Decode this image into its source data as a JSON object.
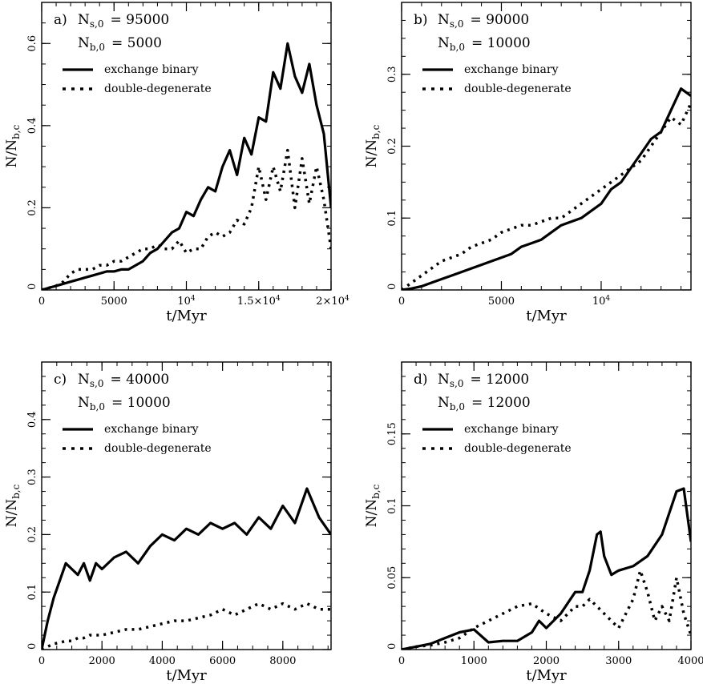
{
  "chart_data": [
    {
      "type": "line",
      "panel_label": "a)",
      "ns_label": "N",
      "ns_sub": "s,0",
      "ns_value": "= 95000",
      "nb_label": "N",
      "nb_sub": "b,0",
      "nb_value": "=  5000",
      "xlabel": "t/Myr",
      "ylabel": "N/N",
      "ylabel_sub": "b,c",
      "xlim": [
        0,
        20000
      ],
      "ylim": [
        0,
        0.7
      ],
      "xticks": [
        {
          "v": 0,
          "label": "0"
        },
        {
          "v": 5000,
          "label": "5000"
        },
        {
          "v": 10000,
          "base": "10",
          "exp": "4"
        },
        {
          "v": 15000,
          "base": "1.5×10",
          "exp": "4"
        },
        {
          "v": 20000,
          "base": "2×10",
          "exp": "4"
        }
      ],
      "xminor": 1000,
      "yticks": [
        {
          "v": 0,
          "label": "0"
        },
        {
          "v": 0.2,
          "label": "0.2"
        },
        {
          "v": 0.4,
          "label": "0.4"
        },
        {
          "v": 0.6,
          "label": "0.6"
        }
      ],
      "yminor": 0.05,
      "series": [
        {
          "name": "exchange binary",
          "style": "solid",
          "x": [
            0,
            500,
            1000,
            1500,
            2000,
            2500,
            3000,
            3500,
            4000,
            4500,
            5000,
            5500,
            6000,
            6500,
            7000,
            7500,
            8000,
            8500,
            9000,
            9500,
            10000,
            10500,
            11000,
            11500,
            12000,
            12500,
            13000,
            13500,
            14000,
            14500,
            15000,
            15500,
            16000,
            16500,
            17000,
            17500,
            18000,
            18500,
            19000,
            19500,
            20000
          ],
          "y": [
            0,
            0.005,
            0.01,
            0.015,
            0.02,
            0.025,
            0.03,
            0.035,
            0.04,
            0.045,
            0.045,
            0.05,
            0.05,
            0.06,
            0.07,
            0.09,
            0.1,
            0.12,
            0.14,
            0.15,
            0.19,
            0.18,
            0.22,
            0.25,
            0.24,
            0.3,
            0.34,
            0.28,
            0.37,
            0.33,
            0.42,
            0.41,
            0.53,
            0.49,
            0.6,
            0.52,
            0.48,
            0.55,
            0.45,
            0.38,
            0.2
          ]
        },
        {
          "name": "double-degenerate",
          "style": "dotted",
          "x": [
            0,
            500,
            1000,
            1500,
            2000,
            2500,
            3000,
            3500,
            4000,
            4500,
            5000,
            5500,
            6000,
            6500,
            7000,
            7500,
            8000,
            8500,
            9000,
            9500,
            10000,
            10500,
            11000,
            11500,
            12000,
            12500,
            13000,
            13500,
            14000,
            14500,
            15000,
            15500,
            16000,
            16500,
            17000,
            17500,
            18000,
            18500,
            19000,
            19500,
            20000
          ],
          "y": [
            0,
            0.005,
            0.01,
            0.02,
            0.04,
            0.05,
            0.05,
            0.05,
            0.06,
            0.06,
            0.07,
            0.07,
            0.08,
            0.09,
            0.1,
            0.1,
            0.11,
            0.1,
            0.1,
            0.12,
            0.09,
            0.1,
            0.1,
            0.13,
            0.14,
            0.13,
            0.14,
            0.17,
            0.16,
            0.2,
            0.3,
            0.22,
            0.3,
            0.24,
            0.34,
            0.2,
            0.32,
            0.21,
            0.3,
            0.22,
            0.1
          ]
        }
      ]
    },
    {
      "type": "line",
      "panel_label": "b)",
      "ns_label": "N",
      "ns_sub": "s,0",
      "ns_value": "= 90000",
      "nb_label": "N",
      "nb_sub": "b,0",
      "nb_value": "= 10000",
      "xlabel": "t/Myr",
      "ylabel": "N/N",
      "ylabel_sub": "b,c",
      "xlim": [
        0,
        14500
      ],
      "ylim": [
        0,
        0.4
      ],
      "xticks": [
        {
          "v": 0,
          "label": "0"
        },
        {
          "v": 5000,
          "label": "5000"
        },
        {
          "v": 10000,
          "base": "10",
          "exp": "4"
        }
      ],
      "xminor": 1000,
      "yticks": [
        {
          "v": 0,
          "label": "0"
        },
        {
          "v": 0.1,
          "label": "0.1"
        },
        {
          "v": 0.2,
          "label": "0.2"
        },
        {
          "v": 0.3,
          "label": "0.3"
        }
      ],
      "yminor": 0.025,
      "series": [
        {
          "name": "exchange binary",
          "style": "solid",
          "x": [
            0,
            500,
            1000,
            1500,
            2000,
            2500,
            3000,
            3500,
            4000,
            4500,
            5000,
            5500,
            6000,
            6500,
            7000,
            7500,
            8000,
            8500,
            9000,
            9500,
            10000,
            10500,
            11000,
            11500,
            12000,
            12500,
            13000,
            13500,
            14000,
            14500
          ],
          "y": [
            0,
            0.002,
            0.005,
            0.01,
            0.015,
            0.02,
            0.025,
            0.03,
            0.035,
            0.04,
            0.045,
            0.05,
            0.06,
            0.065,
            0.07,
            0.08,
            0.09,
            0.095,
            0.1,
            0.11,
            0.12,
            0.14,
            0.15,
            0.17,
            0.19,
            0.21,
            0.22,
            0.25,
            0.28,
            0.27
          ]
        },
        {
          "name": "double-degenerate",
          "style": "dotted",
          "x": [
            0,
            500,
            1000,
            1500,
            2000,
            2500,
            3000,
            3500,
            4000,
            4500,
            5000,
            5500,
            6000,
            6500,
            7000,
            7500,
            8000,
            8500,
            9000,
            9500,
            10000,
            10500,
            11000,
            11500,
            12000,
            12500,
            13000,
            13500,
            14000,
            14500
          ],
          "y": [
            0,
            0.01,
            0.02,
            0.03,
            0.04,
            0.045,
            0.05,
            0.06,
            0.065,
            0.07,
            0.08,
            0.085,
            0.09,
            0.09,
            0.095,
            0.1,
            0.1,
            0.11,
            0.12,
            0.13,
            0.14,
            0.15,
            0.16,
            0.17,
            0.18,
            0.2,
            0.22,
            0.24,
            0.23,
            0.26
          ]
        }
      ]
    },
    {
      "type": "line",
      "panel_label": "c)",
      "ns_label": "N",
      "ns_sub": "s,0",
      "ns_value": "= 40000",
      "nb_label": "N",
      "nb_sub": "b,0",
      "nb_value": "= 10000",
      "xlabel": "t/Myr",
      "ylabel": "N/N",
      "ylabel_sub": "b,c",
      "xlim": [
        0,
        9600
      ],
      "ylim": [
        0,
        0.5
      ],
      "xticks": [
        {
          "v": 0,
          "label": "0"
        },
        {
          "v": 2000,
          "label": "2000"
        },
        {
          "v": 4000,
          "label": "4000"
        },
        {
          "v": 6000,
          "label": "6000"
        },
        {
          "v": 8000,
          "label": "8000"
        }
      ],
      "xminor": 500,
      "yticks": [
        {
          "v": 0,
          "label": "0"
        },
        {
          "v": 0.1,
          "label": "0.1"
        },
        {
          "v": 0.2,
          "label": "0.2"
        },
        {
          "v": 0.3,
          "label": "0.3"
        },
        {
          "v": 0.4,
          "label": "0.4"
        }
      ],
      "yminor": 0.025,
      "series": [
        {
          "name": "exchange binary",
          "style": "solid",
          "x": [
            0,
            200,
            400,
            600,
            800,
            1000,
            1200,
            1400,
            1600,
            1800,
            2000,
            2400,
            2800,
            3200,
            3600,
            4000,
            4400,
            4800,
            5200,
            5600,
            6000,
            6400,
            6800,
            7200,
            7600,
            8000,
            8400,
            8800,
            9200,
            9600
          ],
          "y": [
            0,
            0.05,
            0.09,
            0.12,
            0.15,
            0.14,
            0.13,
            0.15,
            0.12,
            0.15,
            0.14,
            0.16,
            0.17,
            0.15,
            0.18,
            0.2,
            0.19,
            0.21,
            0.2,
            0.22,
            0.21,
            0.22,
            0.2,
            0.23,
            0.21,
            0.25,
            0.22,
            0.28,
            0.23,
            0.2
          ]
        },
        {
          "name": "double-degenerate",
          "style": "dotted",
          "x": [
            0,
            200,
            400,
            600,
            800,
            1000,
            1200,
            1400,
            1600,
            1800,
            2000,
            2400,
            2800,
            3200,
            3600,
            4000,
            4400,
            4800,
            5200,
            5600,
            6000,
            6400,
            6800,
            7200,
            7600,
            8000,
            8400,
            8800,
            9200,
            9600
          ],
          "y": [
            0,
            0.005,
            0.01,
            0.012,
            0.015,
            0.015,
            0.02,
            0.02,
            0.025,
            0.025,
            0.025,
            0.03,
            0.035,
            0.035,
            0.04,
            0.045,
            0.05,
            0.05,
            0.055,
            0.06,
            0.07,
            0.06,
            0.07,
            0.08,
            0.07,
            0.08,
            0.07,
            0.08,
            0.07,
            0.07
          ]
        }
      ]
    },
    {
      "type": "line",
      "panel_label": "d)",
      "ns_label": "N",
      "ns_sub": "s,0",
      "ns_value": "= 12000",
      "nb_label": "N",
      "nb_sub": "b,0",
      "nb_value": "= 12000",
      "xlabel": "t/Myr",
      "ylabel": "N/N",
      "ylabel_sub": "b,c",
      "xlim": [
        0,
        4000
      ],
      "ylim": [
        0,
        0.2
      ],
      "xticks": [
        {
          "v": 0,
          "label": "0"
        },
        {
          "v": 1000,
          "label": "1000"
        },
        {
          "v": 2000,
          "label": "2000"
        },
        {
          "v": 3000,
          "label": "3000"
        },
        {
          "v": 4000,
          "label": "4000"
        }
      ],
      "xminor": 200,
      "yticks": [
        {
          "v": 0,
          "label": "0"
        },
        {
          "v": 0.05,
          "label": "0.05"
        },
        {
          "v": 0.1,
          "label": "0.1"
        },
        {
          "v": 0.15,
          "label": "0.15"
        }
      ],
      "yminor": 0.01,
      "series": [
        {
          "name": "exchange binary",
          "style": "solid",
          "x": [
            0,
            200,
            400,
            600,
            800,
            1000,
            1200,
            1400,
            1600,
            1800,
            1900,
            2000,
            2200,
            2400,
            2500,
            2600,
            2700,
            2750,
            2800,
            2900,
            3000,
            3200,
            3400,
            3600,
            3800,
            3900,
            4000
          ],
          "y": [
            0,
            0.002,
            0.004,
            0.008,
            0.012,
            0.014,
            0.005,
            0.006,
            0.006,
            0.012,
            0.02,
            0.015,
            0.025,
            0.04,
            0.04,
            0.055,
            0.08,
            0.082,
            0.065,
            0.052,
            0.055,
            0.058,
            0.065,
            0.08,
            0.11,
            0.112,
            0.075
          ]
        },
        {
          "name": "double-degenerate",
          "style": "dotted",
          "x": [
            0,
            200,
            400,
            600,
            800,
            1000,
            1200,
            1400,
            1600,
            1800,
            2000,
            2200,
            2400,
            2500,
            2600,
            2700,
            2800,
            2900,
            3000,
            3100,
            3200,
            3300,
            3400,
            3500,
            3600,
            3700,
            3800,
            3900,
            4000
          ],
          "y": [
            0,
            0.002,
            0.003,
            0.005,
            0.008,
            0.015,
            0.02,
            0.025,
            0.03,
            0.032,
            0.025,
            0.02,
            0.03,
            0.03,
            0.035,
            0.03,
            0.025,
            0.02,
            0.015,
            0.025,
            0.035,
            0.055,
            0.04,
            0.02,
            0.03,
            0.02,
            0.05,
            0.025,
            0.01
          ]
        }
      ]
    }
  ]
}
